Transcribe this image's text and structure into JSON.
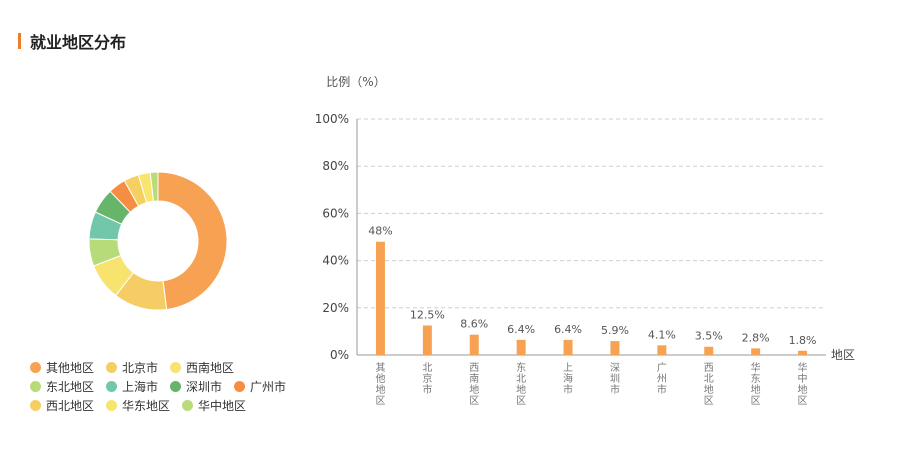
{
  "section": {
    "title": "就业地区分布"
  },
  "chart_data": [
    {
      "type": "pie",
      "subtype": "donut",
      "labels": [
        "其他地区",
        "北京市",
        "西南地区",
        "东北地区",
        "上海市",
        "深圳市",
        "广州市",
        "西北地区",
        "华东地区",
        "华中地区"
      ],
      "values": [
        48,
        12.5,
        8.6,
        6.4,
        6.4,
        5.9,
        4.1,
        3.5,
        2.8,
        1.8
      ],
      "colors": [
        "#f7a153",
        "#f5cd64",
        "#f7e36d",
        "#b8db79",
        "#72c7aa",
        "#66b56b",
        "#f58d43",
        "#f6cf61",
        "#f8e56d",
        "#b9dc7a"
      ],
      "legend_position": "bottom-left"
    },
    {
      "type": "bar",
      "categories": [
        "其他地区",
        "北京市",
        "西南地区",
        "东北地区",
        "上海市",
        "深圳市",
        "广州市",
        "西北地区",
        "华东地区",
        "华中地区"
      ],
      "values": [
        48,
        12.5,
        8.6,
        6.4,
        6.4,
        5.9,
        4.1,
        3.5,
        2.8,
        1.8
      ],
      "value_labels": [
        "48%",
        "12.5%",
        "8.6%",
        "6.4%",
        "6.4%",
        "5.9%",
        "4.1%",
        "3.5%",
        "2.8%",
        "1.8%"
      ],
      "ylabel": "比例（%）",
      "xlabel": "地区",
      "ylim": [
        0,
        100
      ],
      "yticks": [
        "0%",
        "20%",
        "40%",
        "60%",
        "80%",
        "100%"
      ],
      "grid": true,
      "bar_color": "#f7a153"
    }
  ]
}
